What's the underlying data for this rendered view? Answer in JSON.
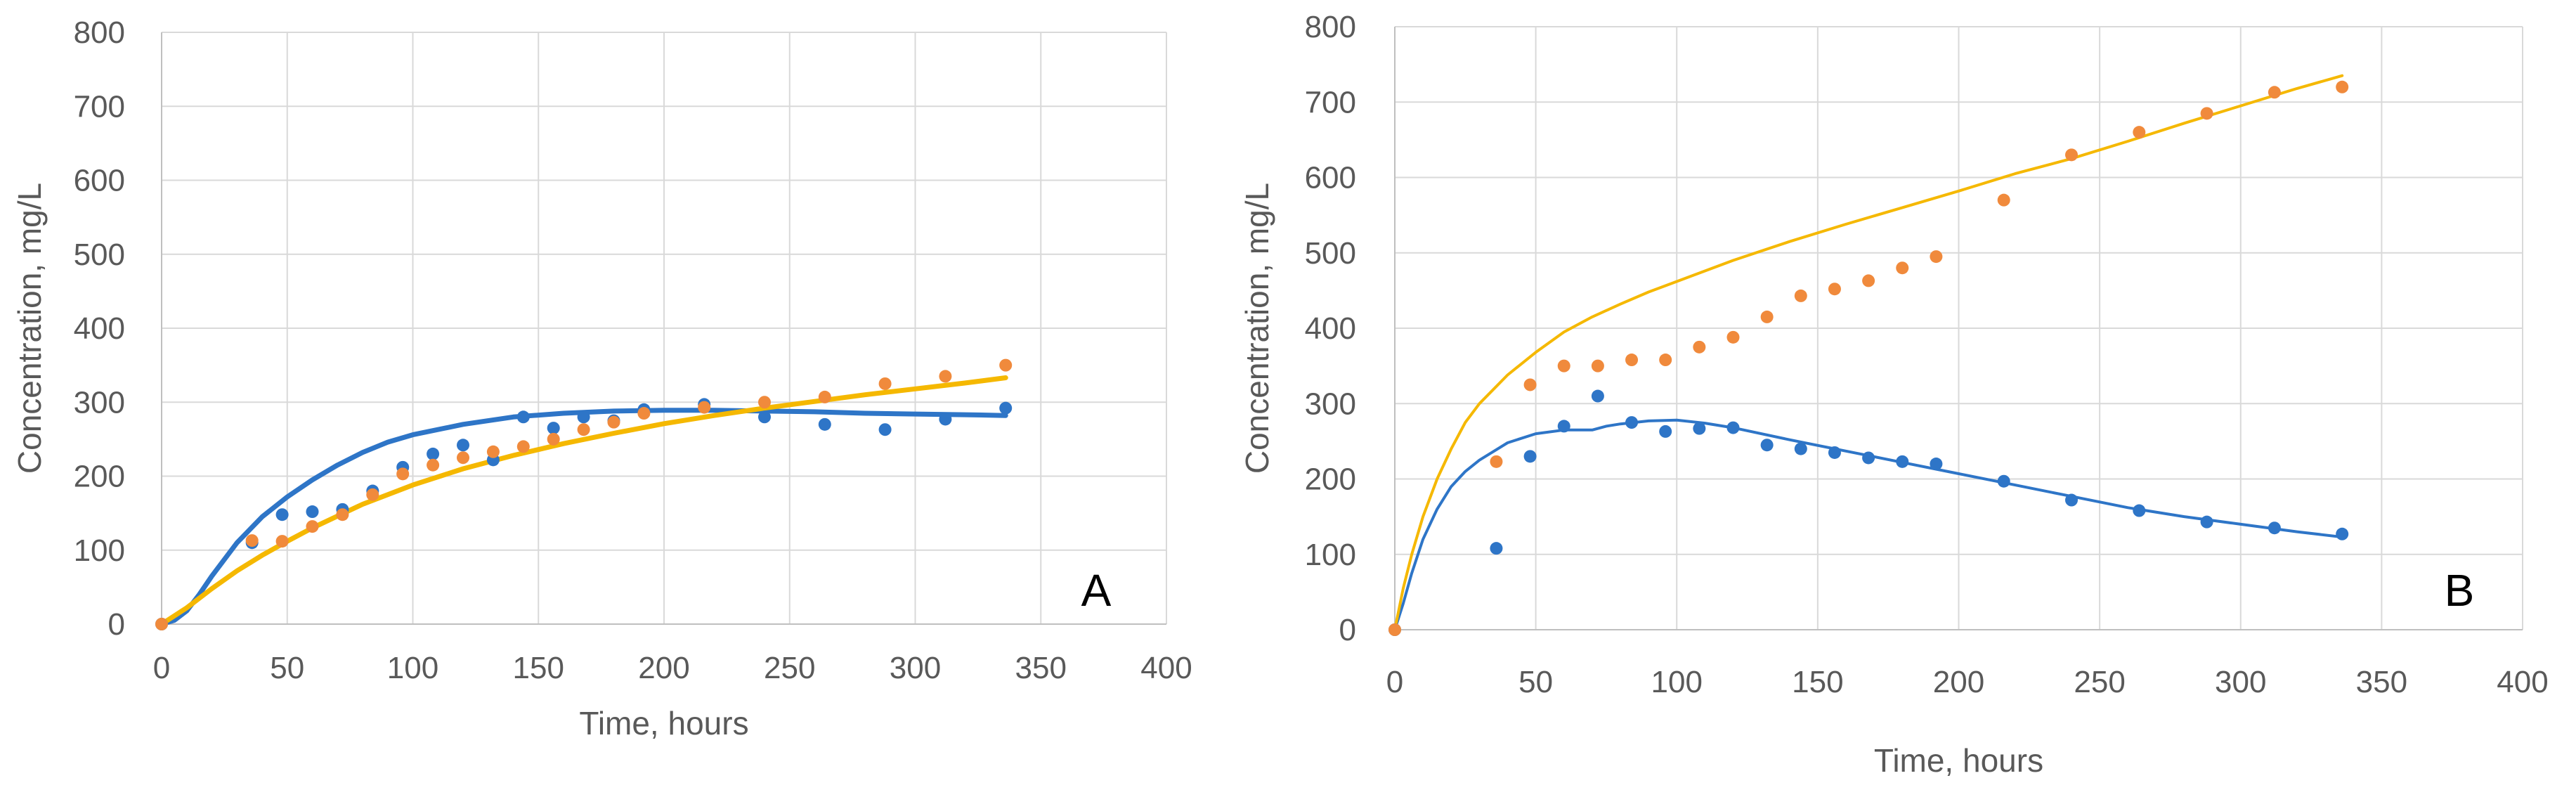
{
  "colors": {
    "blue": "#2e75c7",
    "orange": "#f08a3c",
    "yellow": "#f5b800",
    "grid": "#d9d9d9",
    "text": "#595959"
  },
  "chart_data": [
    {
      "type": "scatter",
      "panel_label": "A",
      "xlabel": "Time, hours",
      "ylabel": "Concentration, mg/L",
      "xlim": [
        0,
        400
      ],
      "ylim": [
        0,
        800
      ],
      "xticks": [
        0,
        50,
        100,
        150,
        200,
        250,
        300,
        350,
        400
      ],
      "yticks": [
        0,
        100,
        200,
        300,
        400,
        500,
        600,
        700,
        800
      ],
      "series": [
        {
          "name": "blue-measured",
          "kind": "points",
          "color": "#2e75c7",
          "x": [
            0,
            36,
            48,
            60,
            72,
            84,
            96,
            108,
            120,
            132,
            144,
            156,
            168,
            180,
            192,
            216,
            240,
            264,
            288,
            312,
            336
          ],
          "y": [
            0,
            110,
            148,
            152,
            155,
            180,
            212,
            230,
            242,
            222,
            280,
            265,
            280,
            275,
            290,
            297,
            280,
            270,
            263,
            277,
            292
          ]
        },
        {
          "name": "orange-measured",
          "kind": "points",
          "color": "#f08a3c",
          "x": [
            0,
            36,
            48,
            60,
            72,
            84,
            96,
            108,
            120,
            132,
            144,
            156,
            168,
            180,
            192,
            216,
            240,
            264,
            288,
            312,
            336
          ],
          "y": [
            0,
            113,
            112,
            132,
            148,
            175,
            203,
            215,
            225,
            233,
            240,
            250,
            263,
            273,
            285,
            293,
            300,
            307,
            325,
            335,
            350
          ]
        },
        {
          "name": "blue-model",
          "kind": "line",
          "color": "#2e75c7",
          "x": [
            0,
            5,
            10,
            15,
            20,
            30,
            40,
            50,
            60,
            70,
            80,
            90,
            100,
            120,
            140,
            160,
            180,
            200,
            220,
            240,
            260,
            280,
            300,
            320,
            336
          ],
          "y": [
            0,
            5,
            18,
            40,
            65,
            110,
            145,
            172,
            195,
            215,
            232,
            246,
            256,
            270,
            280,
            285,
            288,
            289,
            289,
            288,
            287,
            285,
            284,
            283,
            282
          ]
        },
        {
          "name": "yellow-model",
          "kind": "line",
          "color": "#f5b800",
          "x": [
            0,
            10,
            20,
            30,
            40,
            50,
            60,
            80,
            100,
            120,
            140,
            160,
            180,
            200,
            220,
            240,
            260,
            280,
            300,
            320,
            336
          ],
          "y": [
            0,
            22,
            48,
            72,
            93,
            112,
            130,
            162,
            188,
            210,
            228,
            244,
            258,
            271,
            282,
            292,
            301,
            310,
            318,
            326,
            333
          ]
        }
      ]
    },
    {
      "type": "scatter",
      "panel_label": "B",
      "xlabel": "Time, hours",
      "ylabel": "Concentration, mg/L",
      "xlim": [
        0,
        400
      ],
      "ylim": [
        0,
        800
      ],
      "xticks": [
        0,
        50,
        100,
        150,
        200,
        250,
        300,
        350,
        400
      ],
      "yticks": [
        0,
        100,
        200,
        300,
        400,
        500,
        600,
        700,
        800
      ],
      "series": [
        {
          "name": "blue-measured",
          "kind": "points",
          "color": "#2e75c7",
          "x": [
            0,
            36,
            48,
            60,
            72,
            84,
            96,
            108,
            120,
            132,
            144,
            156,
            168,
            180,
            192,
            216,
            240,
            264,
            288,
            312,
            336
          ],
          "y": [
            0,
            108,
            230,
            270,
            310,
            275,
            263,
            267,
            268,
            245,
            240,
            235,
            228,
            223,
            220,
            197,
            172,
            158,
            143,
            135,
            127
          ]
        },
        {
          "name": "orange-measured",
          "kind": "points",
          "color": "#f08a3c",
          "x": [
            0,
            36,
            48,
            60,
            72,
            84,
            96,
            108,
            120,
            132,
            144,
            156,
            168,
            180,
            192,
            216,
            240,
            264,
            288,
            312,
            336
          ],
          "y": [
            0,
            223,
            325,
            350,
            350,
            358,
            358,
            375,
            388,
            415,
            443,
            452,
            463,
            480,
            495,
            570,
            630,
            660,
            685,
            713,
            720
          ]
        },
        {
          "name": "blue-model",
          "kind": "line",
          "color": "#2e75c7",
          "x": [
            0,
            3,
            6,
            10,
            15,
            20,
            25,
            30,
            40,
            50,
            60,
            70,
            75,
            80,
            90,
            100,
            110,
            120,
            140,
            160,
            180,
            200,
            220,
            240,
            260,
            280,
            300,
            320,
            336
          ],
          "y": [
            0,
            35,
            75,
            120,
            160,
            190,
            210,
            225,
            248,
            260,
            265,
            265,
            270,
            273,
            277,
            278,
            274,
            268,
            252,
            237,
            222,
            207,
            192,
            177,
            162,
            150,
            140,
            130,
            123
          ]
        },
        {
          "name": "yellow-model",
          "kind": "line",
          "color": "#f5b800",
          "x": [
            0,
            3,
            6,
            10,
            15,
            20,
            25,
            30,
            40,
            50,
            60,
            70,
            80,
            90,
            100,
            120,
            140,
            160,
            180,
            200,
            220,
            240,
            260,
            280,
            300,
            320,
            336
          ],
          "y": [
            0,
            55,
            100,
            150,
            200,
            240,
            275,
            300,
            338,
            368,
            395,
            415,
            432,
            448,
            462,
            490,
            515,
            538,
            560,
            582,
            605,
            625,
            648,
            672,
            695,
            718,
            735
          ]
        }
      ]
    }
  ]
}
